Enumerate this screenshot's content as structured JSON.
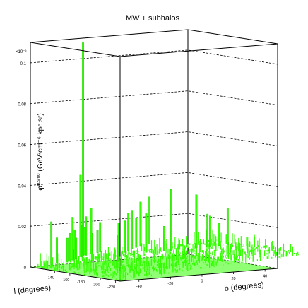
{
  "chart_data": {
    "type": "lego3d",
    "title": "MW + subhalos",
    "zlabel": "φ^{cosmo} (GeV^{2} cm^{-6} kpc sr)",
    "zlabel_main": "φ",
    "zlabel_super": "cosmo",
    "zlabel_rest": "(GeV²cm⁻⁶ kpc sr)",
    "zscale_label": "×10⁻³",
    "zlim": [
      0,
      0.11
    ],
    "zticks": [
      {
        "value": 0,
        "label": "0"
      },
      {
        "value": 0.02,
        "label": "0.02"
      },
      {
        "value": 0.04,
        "label": "0.04"
      },
      {
        "value": 0.06,
        "label": "0.06"
      },
      {
        "value": 0.08,
        "label": "0.08"
      },
      {
        "value": 0.1,
        "label": "0.1"
      }
    ],
    "xlabel": "l (degrees)",
    "xticks": [
      "-140",
      "-160",
      "-180",
      "-200",
      "-220"
    ],
    "ylabel": "b (degrees)",
    "yticks": [
      "-40",
      "-20",
      "0",
      "20",
      "40"
    ],
    "grid": true,
    "series_color": "#33ff00",
    "peaks": [
      {
        "l": -178,
        "b": 44,
        "value": 0.018
      },
      {
        "l": -175,
        "b": 40,
        "value": 0.011
      },
      {
        "l": -170,
        "b": 35,
        "value": 0.016
      },
      {
        "l": -166,
        "b": 30,
        "value": 0.026
      },
      {
        "l": -160,
        "b": 18,
        "value": 0.03
      },
      {
        "l": -172,
        "b": 36,
        "value": 0.015
      },
      {
        "l": -152,
        "b": 16,
        "value": 0.012
      },
      {
        "l": -145,
        "b": 8,
        "value": 0.019
      },
      {
        "l": -150,
        "b": -8,
        "value": 0.0105
      },
      {
        "l": -152,
        "b": -22,
        "value": 0.0135
      },
      {
        "l": -180,
        "b": -14,
        "value": 0.0185
      },
      {
        "l": -135,
        "b": -40,
        "value": 0.021
      },
      {
        "l": -130,
        "b": -36,
        "value": 0.0125
      },
      {
        "l": -128,
        "b": -30,
        "value": 0.0115
      },
      {
        "l": -125,
        "b": -28,
        "value": 0.0135
      },
      {
        "l": -122,
        "b": -26,
        "value": 0.021
      },
      {
        "l": -118,
        "b": -24,
        "value": 0.0145
      },
      {
        "l": -112,
        "b": -22,
        "value": 0.01
      },
      {
        "l": -108,
        "b": -18,
        "value": 0.0155
      },
      {
        "l": -104,
        "b": -18,
        "value": 0.04
      },
      {
        "l": -101,
        "b": -16,
        "value": 0.1045
      },
      {
        "l": -99,
        "b": -14,
        "value": 0.019
      },
      {
        "l": -96,
        "b": -14,
        "value": 0.0135
      },
      {
        "l": -93,
        "b": -10,
        "value": 0.0225
      },
      {
        "l": -90,
        "b": -6,
        "value": 0.011
      },
      {
        "l": -87,
        "b": -4,
        "value": 0.0145
      },
      {
        "l": -120,
        "b": 2,
        "value": 0.0155
      },
      {
        "l": -110,
        "b": 6,
        "value": 0.0185
      },
      {
        "l": -100,
        "b": 10,
        "value": 0.019
      },
      {
        "l": -92,
        "b": 14,
        "value": 0.0145
      },
      {
        "l": -84,
        "b": 18,
        "value": 0.0215
      },
      {
        "l": -78,
        "b": 24,
        "value": 0.023
      }
    ]
  }
}
